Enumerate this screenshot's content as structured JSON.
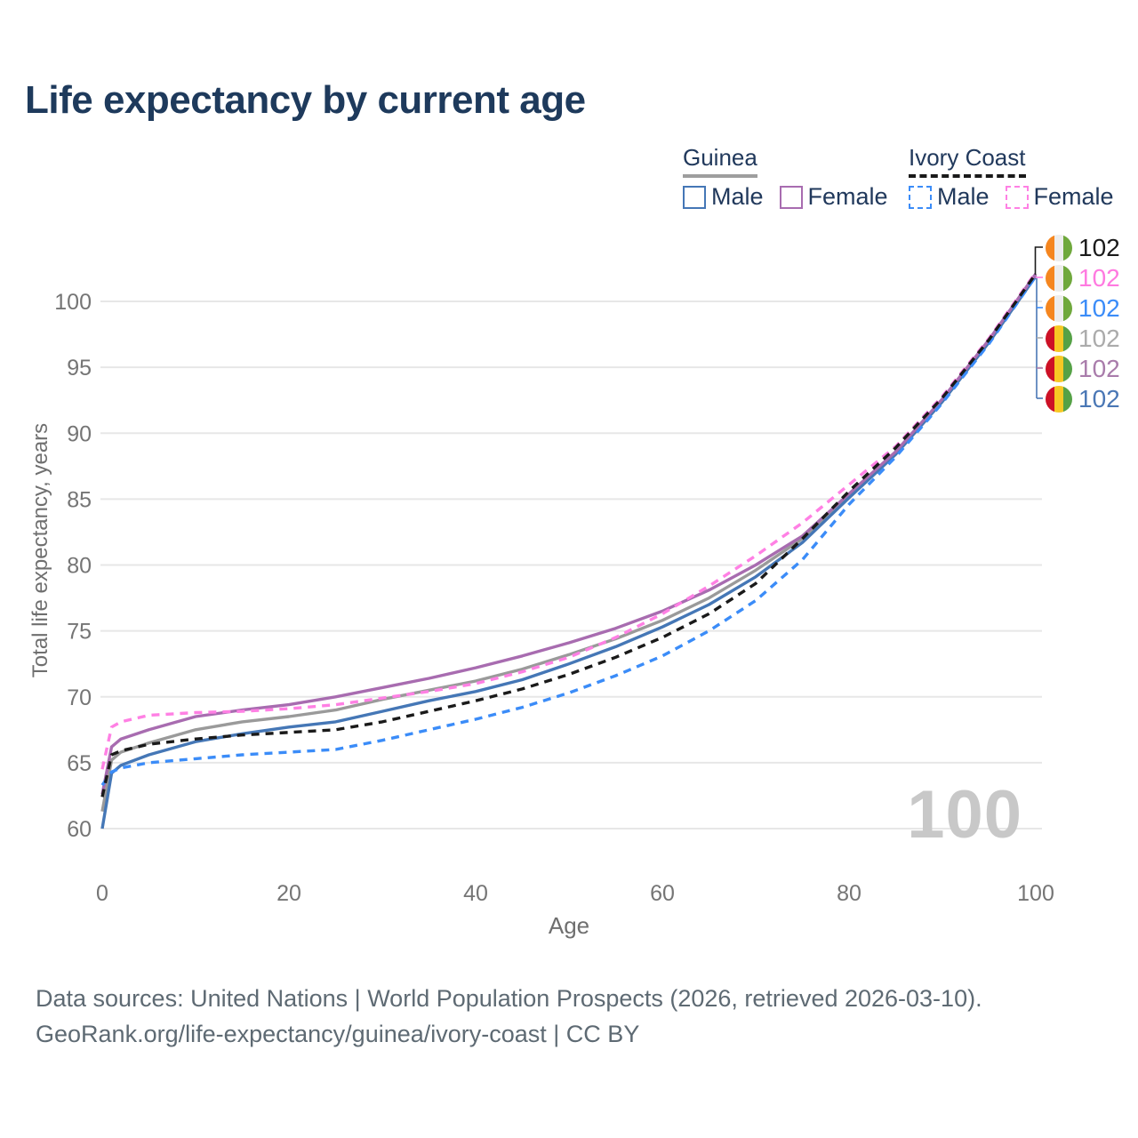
{
  "title": "Life expectancy by current age",
  "watermark": "100",
  "legend": {
    "groups": [
      {
        "name": "Guinea",
        "line_style": "solid",
        "items": [
          {
            "label": "Male",
            "color": "#4577b6"
          },
          {
            "label": "Female",
            "color": "#a86cb0"
          }
        ]
      },
      {
        "name": "Ivory Coast",
        "line_style": "dashed",
        "items": [
          {
            "label": "Male",
            "color": "#3b8cf8"
          },
          {
            "label": "Female",
            "color": "#ff80e4"
          }
        ]
      }
    ]
  },
  "axes": {
    "x": {
      "label": "Age",
      "ticks": [
        0,
        20,
        40,
        60,
        80,
        100
      ],
      "range": [
        0,
        100
      ]
    },
    "y": {
      "label": "Total life expectancy, years",
      "ticks": [
        60,
        65,
        70,
        75,
        80,
        85,
        90,
        95,
        100
      ],
      "range": [
        58.5,
        103
      ]
    }
  },
  "flag_palettes": {
    "guinea": [
      "#cd1126",
      "#f7c824",
      "#55a146"
    ],
    "ivory_coast": [
      "#f5861f",
      "#ededed",
      "#6fa83c"
    ]
  },
  "chart_data": {
    "type": "line",
    "title": "Life expectancy by current age",
    "xlabel": "Age",
    "ylabel": "Total life expectancy, years",
    "xlim": [
      0,
      100
    ],
    "ylim": [
      58.5,
      103
    ],
    "grid": "horizontal",
    "legend_position": "top-right",
    "x": [
      0,
      1,
      2,
      5,
      10,
      15,
      20,
      25,
      30,
      35,
      40,
      45,
      50,
      55,
      60,
      65,
      70,
      75,
      80,
      85,
      90,
      95,
      100
    ],
    "series": [
      {
        "name": "Guinea Both sexes",
        "country": "Guinea",
        "sex": "Both",
        "color": "#9a9a9a",
        "dash": false,
        "flag": "guinea",
        "end_label": "102",
        "values": [
          61.3,
          65.2,
          65.8,
          66.5,
          67.5,
          68.1,
          68.5,
          69.0,
          69.8,
          70.5,
          71.2,
          72.1,
          73.2,
          74.4,
          75.8,
          77.5,
          79.6,
          82.0,
          85.2,
          88.5,
          92.5,
          97.0,
          102.0
        ]
      },
      {
        "name": "Guinea Male",
        "country": "Guinea",
        "sex": "Male",
        "color": "#4577b6",
        "dash": false,
        "flag": "guinea",
        "end_label": "102",
        "values": [
          60.0,
          64.2,
          64.8,
          65.6,
          66.6,
          67.2,
          67.7,
          68.1,
          68.9,
          69.7,
          70.4,
          71.3,
          72.5,
          73.8,
          75.3,
          77.0,
          79.1,
          81.7,
          85.1,
          88.4,
          92.4,
          96.9,
          101.9
        ]
      },
      {
        "name": "Guinea Female",
        "country": "Guinea",
        "sex": "Female",
        "color": "#a86cb0",
        "dash": false,
        "flag": "guinea",
        "end_label": "102",
        "values": [
          62.6,
          66.2,
          66.8,
          67.5,
          68.5,
          69.0,
          69.4,
          70.0,
          70.7,
          71.4,
          72.2,
          73.1,
          74.1,
          75.2,
          76.5,
          78.1,
          80.0,
          82.2,
          85.4,
          88.6,
          92.6,
          97.1,
          102.1
        ]
      },
      {
        "name": "Ivory Coast Male",
        "country": "Ivory Coast",
        "sex": "Male",
        "color": "#3b8cf8",
        "dash": true,
        "flag": "ivory_coast",
        "end_label": "102",
        "values": [
          63.3,
          64.3,
          64.6,
          65.0,
          65.3,
          65.6,
          65.8,
          66.0,
          66.7,
          67.5,
          68.3,
          69.2,
          70.3,
          71.6,
          73.1,
          75.0,
          77.3,
          80.4,
          84.6,
          88.2,
          92.3,
          96.8,
          101.9
        ]
      },
      {
        "name": "Ivory Coast Female",
        "country": "Ivory Coast",
        "sex": "Female",
        "color": "#ff80e4",
        "dash": true,
        "flag": "ivory_coast",
        "end_label": "102",
        "values": [
          64.5,
          67.7,
          68.1,
          68.6,
          68.8,
          68.9,
          69.1,
          69.4,
          69.9,
          70.4,
          71.0,
          71.9,
          73.0,
          74.5,
          76.3,
          78.4,
          80.7,
          83.2,
          86.1,
          89.0,
          92.8,
          97.2,
          102.2
        ]
      },
      {
        "name": "Ivory Coast Both sexes",
        "country": "Ivory Coast",
        "sex": "Both",
        "color": "#1a1a1a",
        "dash": true,
        "flag": "ivory_coast",
        "end_label": "102",
        "values": [
          62.4,
          65.6,
          65.9,
          66.4,
          66.8,
          67.1,
          67.3,
          67.5,
          68.1,
          68.9,
          69.7,
          70.6,
          71.7,
          73.0,
          74.5,
          76.3,
          78.6,
          82.0,
          85.6,
          88.9,
          92.7,
          97.1,
          102.1
        ]
      }
    ],
    "end_labels": [
      {
        "series": "Ivory Coast Both sexes",
        "value": "102",
        "flag": "ivory_coast",
        "text_color": "#1a1a1a"
      },
      {
        "series": "Ivory Coast Female",
        "value": "102",
        "flag": "ivory_coast",
        "text_color": "#ff7ae0"
      },
      {
        "series": "Ivory Coast Male",
        "value": "102",
        "flag": "ivory_coast",
        "text_color": "#3b8cf8"
      },
      {
        "series": "Guinea Both sexes",
        "value": "102",
        "flag": "guinea",
        "text_color": "#ababab"
      },
      {
        "series": "Guinea Female",
        "value": "102",
        "flag": "guinea",
        "text_color": "#a97cab"
      },
      {
        "series": "Guinea Male",
        "value": "102",
        "flag": "guinea",
        "text_color": "#4a77b5"
      }
    ]
  },
  "footer": {
    "line1": "Data sources: United Nations | World Population Prospects (2026, retrieved 2026-03-10).",
    "line2": "GeoRank.org/life-expectancy/guinea/ivory-coast | CC BY"
  }
}
